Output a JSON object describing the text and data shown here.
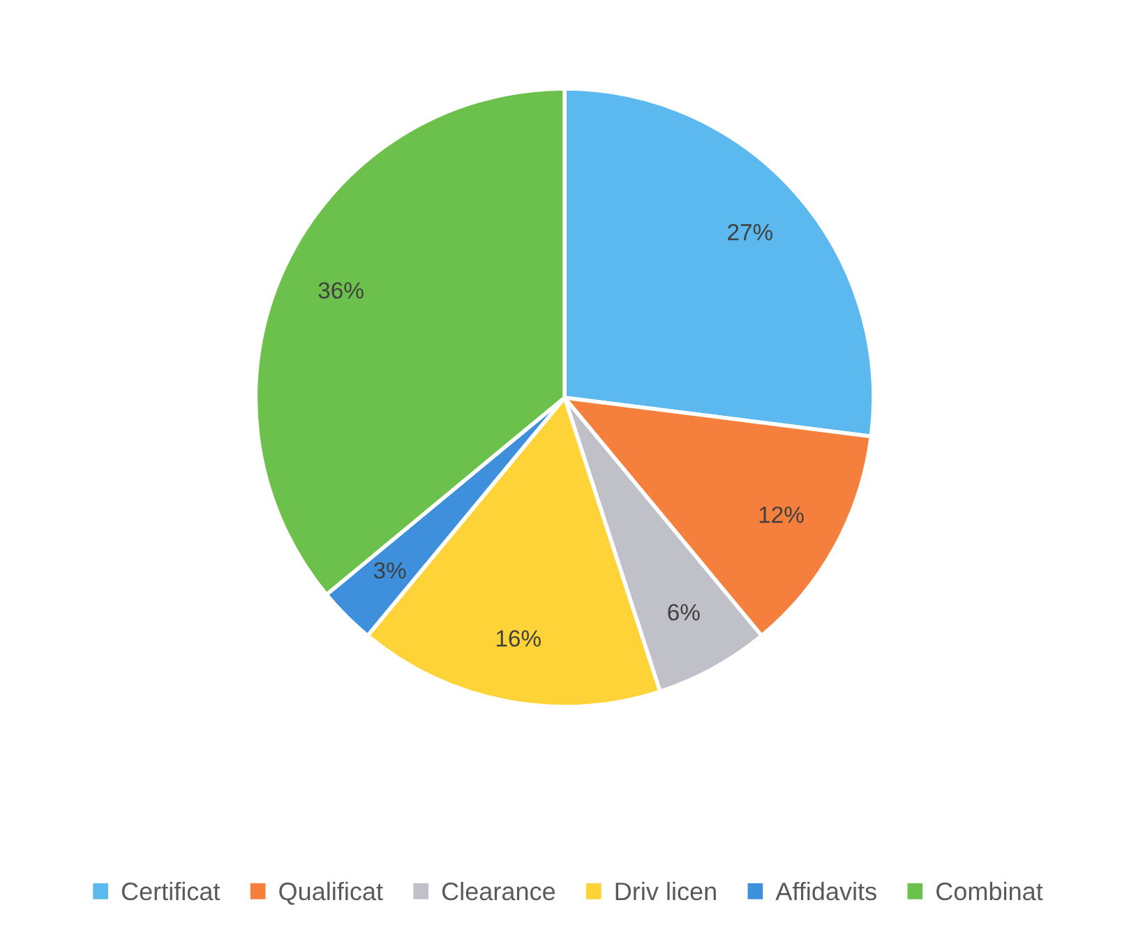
{
  "chart_data": {
    "type": "pie",
    "categories": [
      "Certificat",
      "Qualificat",
      "Clearance",
      "Driv licen",
      "Affidavits",
      "Combinat"
    ],
    "values": [
      27,
      12,
      6,
      16,
      3,
      36
    ],
    "colors": [
      "#5bb9f0",
      "#f5803e",
      "#c0c0c8",
      "#fdd338",
      "#3e8fdc",
      "#6cc04c"
    ],
    "value_labels": [
      "27%",
      "12%",
      "6%",
      "16%",
      "3%",
      "36%"
    ],
    "legend": "bottom"
  }
}
